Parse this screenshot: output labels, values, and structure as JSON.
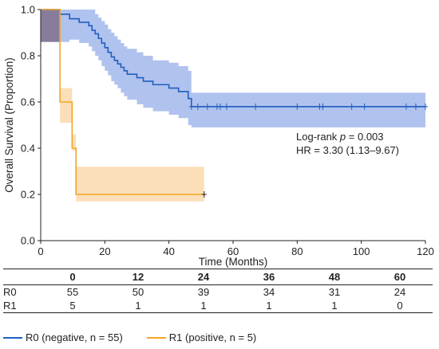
{
  "chart_data": {
    "type": "kaplan-meier",
    "xlabel": "Time (Months)",
    "ylabel": "Overall Survival (Proportion)",
    "xlim": [
      0,
      120
    ],
    "ylim": [
      0,
      1.0
    ],
    "xticks": [
      "0",
      "20",
      "40",
      "60",
      "80",
      "100",
      "120"
    ],
    "yticks": [
      "0.0",
      "0.2",
      "0.4",
      "0.6",
      "0.8",
      "1.0"
    ],
    "grid": false,
    "annotation": {
      "line1_prefix": "Log-rank ",
      "line1_p": "p",
      "line1_value": " = 0.003",
      "line2": "HR = 3.30 (1.13–9.67)"
    },
    "series": [
      {
        "name": "R0 (negative, n = 55)",
        "color": "#1f5fbf",
        "band_color": "#6f8fe0",
        "steps": [
          [
            0,
            1.0
          ],
          [
            6,
            0.98
          ],
          [
            9,
            0.96
          ],
          [
            12,
            0.945
          ],
          [
            15,
            0.93
          ],
          [
            16,
            0.91
          ],
          [
            17,
            0.895
          ],
          [
            18,
            0.875
          ],
          [
            19,
            0.855
          ],
          [
            20,
            0.835
          ],
          [
            21,
            0.815
          ],
          [
            22,
            0.795
          ],
          [
            23,
            0.78
          ],
          [
            24,
            0.765
          ],
          [
            25,
            0.75
          ],
          [
            26,
            0.735
          ],
          [
            27,
            0.72
          ],
          [
            30,
            0.705
          ],
          [
            32,
            0.69
          ],
          [
            35,
            0.675
          ],
          [
            40,
            0.66
          ],
          [
            43,
            0.645
          ],
          [
            46,
            0.615
          ],
          [
            47,
            0.58
          ],
          [
            120,
            0.58
          ]
        ],
        "lower": [
          [
            0,
            0.86
          ],
          [
            6,
            0.86
          ],
          [
            9,
            0.87
          ],
          [
            12,
            0.855
          ],
          [
            15,
            0.84
          ],
          [
            16,
            0.82
          ],
          [
            17,
            0.8
          ],
          [
            18,
            0.78
          ],
          [
            19,
            0.755
          ],
          [
            20,
            0.735
          ],
          [
            21,
            0.715
          ],
          [
            22,
            0.69
          ],
          [
            23,
            0.675
          ],
          [
            24,
            0.66
          ],
          [
            25,
            0.64
          ],
          [
            26,
            0.625
          ],
          [
            27,
            0.61
          ],
          [
            30,
            0.59
          ],
          [
            32,
            0.575
          ],
          [
            35,
            0.56
          ],
          [
            40,
            0.545
          ],
          [
            43,
            0.53
          ],
          [
            46,
            0.5
          ],
          [
            47,
            0.49
          ],
          [
            120,
            0.49
          ]
        ],
        "upper": [
          [
            0,
            1.0
          ],
          [
            6,
            1.0
          ],
          [
            9,
            1.0
          ],
          [
            12,
            1.0
          ],
          [
            15,
            1.0
          ],
          [
            16,
            1.0
          ],
          [
            17,
            0.98
          ],
          [
            18,
            0.965
          ],
          [
            19,
            0.95
          ],
          [
            20,
            0.935
          ],
          [
            21,
            0.915
          ],
          [
            22,
            0.9
          ],
          [
            23,
            0.885
          ],
          [
            24,
            0.87
          ],
          [
            25,
            0.855
          ],
          [
            26,
            0.84
          ],
          [
            27,
            0.83
          ],
          [
            30,
            0.815
          ],
          [
            32,
            0.8
          ],
          [
            35,
            0.78
          ],
          [
            40,
            0.77
          ],
          [
            43,
            0.755
          ],
          [
            46,
            0.735
          ],
          [
            47,
            0.64
          ],
          [
            120,
            0.64
          ]
        ],
        "censored": [
          47,
          49,
          52,
          55,
          56,
          58,
          67,
          80,
          87,
          88,
          97,
          101,
          114,
          117,
          120
        ]
      },
      {
        "name": "R1 (positive, n = 5)",
        "color": "#f5a623",
        "band_color": "#f9c98a",
        "steps": [
          [
            0,
            1.0
          ],
          [
            6,
            0.6
          ],
          [
            9,
            0.6
          ],
          [
            9.8,
            0.4
          ],
          [
            11,
            0.2
          ],
          [
            51,
            0.2
          ]
        ],
        "lower": [
          [
            0,
            0.86
          ],
          [
            6,
            0.51
          ],
          [
            9,
            0.51
          ],
          [
            9.8,
            0.39
          ],
          [
            11,
            0.17
          ],
          [
            51,
            0.17
          ]
        ],
        "upper": [
          [
            0,
            1.0
          ],
          [
            6,
            0.66
          ],
          [
            9,
            0.66
          ],
          [
            9.8,
            0.46
          ],
          [
            11,
            0.32
          ],
          [
            51,
            0.32
          ]
        ],
        "censored": [
          51
        ]
      }
    ]
  },
  "risk_table": {
    "times": [
      "0",
      "12",
      "24",
      "36",
      "48",
      "60"
    ],
    "rows": [
      {
        "label": "R0",
        "values": [
          "55",
          "50",
          "39",
          "34",
          "31",
          "24"
        ]
      },
      {
        "label": "R1",
        "values": [
          "5",
          "1",
          "1",
          "1",
          "1",
          "0"
        ]
      }
    ]
  },
  "legend": [
    {
      "label": "R0 (negative, n = 55)",
      "color": "#1f5fbf"
    },
    {
      "label": "R1 (positive, n = 5)",
      "color": "#f5a623"
    }
  ]
}
